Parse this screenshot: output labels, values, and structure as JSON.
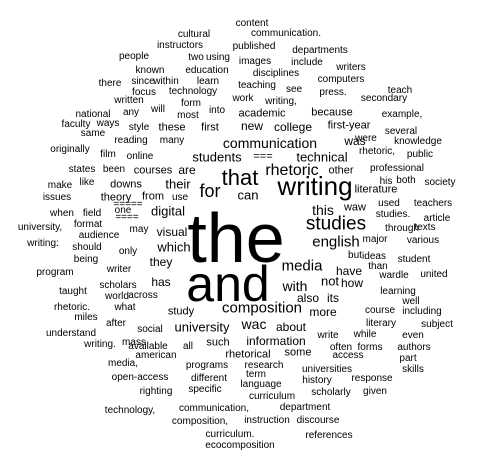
{
  "words": [
    "the",
    "and",
    "writing",
    "that",
    "for",
    "studies",
    "composition",
    "english",
    "rhetoric",
    "media",
    "students",
    "communication",
    "technical",
    "university",
    "digital",
    "visual",
    "their",
    "which",
    "was",
    "are",
    "this",
    "with",
    "not",
    "also",
    "its",
    "waw",
    "has",
    "they",
    "wac",
    "about",
    "new",
    "college",
    "these",
    "first",
    "have",
    "how",
    "can",
    "more",
    "information",
    "courses",
    "from",
    "downs",
    "theory",
    "first-year",
    "academic",
    "because",
    "literature",
    "other",
    "such",
    "study",
    "rhetorical",
    "some",
    "=====",
    "===",
    "===="
  ],
  "other_words": [
    "content",
    "communication.",
    "cultural",
    "instructors",
    "published",
    "departments",
    "people",
    "two",
    "using",
    "images",
    "include",
    "writers",
    "known",
    "education",
    "disciplines",
    "computers",
    "there",
    "since",
    "within",
    "learn",
    "teaching",
    "see",
    "teach",
    "focus",
    "technology",
    "press.",
    "written",
    "will",
    "form",
    "work",
    "writing,",
    "secondary",
    "national",
    "any",
    "most",
    "into",
    "example,",
    "faculty",
    "ways",
    "style",
    "many",
    "several",
    "same",
    "reading",
    "were",
    "knowledge",
    "originally",
    "film",
    "online",
    "rhetoric,",
    "public",
    "states",
    "been",
    "professional",
    "make",
    "like",
    "society",
    "issues",
    "his",
    "both",
    "use",
    "used",
    "teachers",
    "when",
    "field",
    "one",
    "studies.",
    "article",
    "university,",
    "format",
    "texts",
    "audience",
    "may",
    "through",
    "writing:",
    "should",
    "only",
    "major",
    "various",
    "being",
    "but",
    "ideas",
    "student",
    "program",
    "writer",
    "than",
    "taught",
    "scholars",
    "wardle",
    "united",
    "world",
    "across",
    "learning",
    "rhetoric.",
    "well",
    "miles",
    "what",
    "including",
    "after",
    "subject",
    "understand",
    "social",
    "literary",
    "writing.",
    "mass",
    "write",
    "while",
    "even",
    "available",
    "all",
    "often",
    "forms",
    "authors",
    "media,",
    "american",
    "access",
    "part",
    "programs",
    "research",
    "skills",
    "open-access",
    "different",
    "term",
    "universities",
    "response",
    "righting",
    "specific",
    "language",
    "history",
    "curriculum",
    "scholarly",
    "given",
    "technology,",
    "communication,",
    "department",
    "composition,",
    "instruction",
    "discourse",
    "curriculum.",
    "references",
    "ecocomposition",
    "course"
  ]
}
